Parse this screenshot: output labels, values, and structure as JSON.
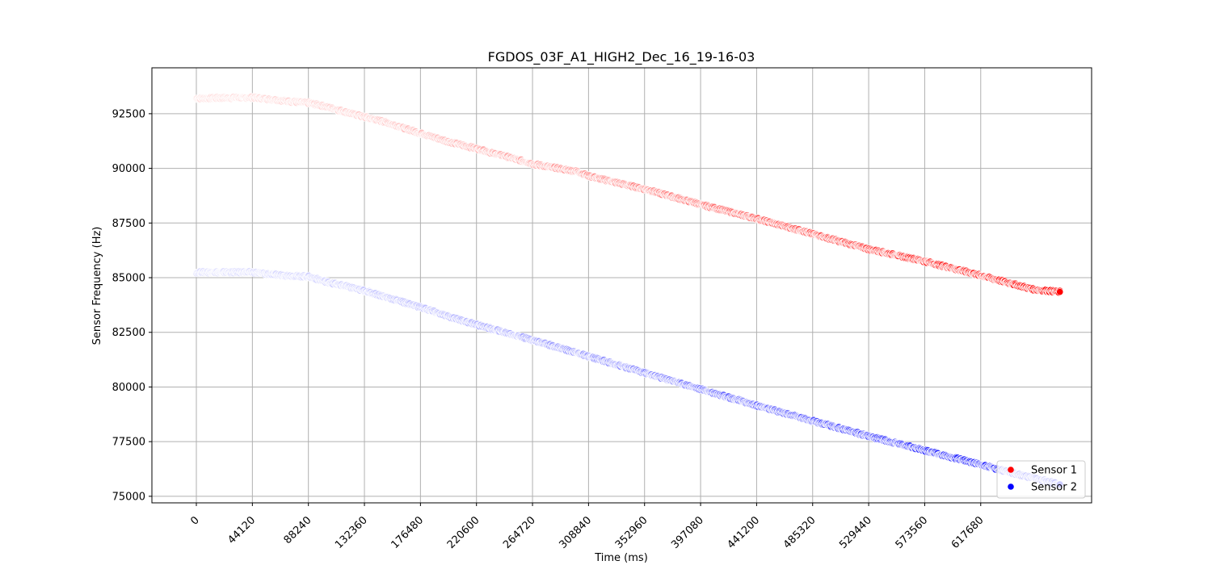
{
  "chart_data": {
    "type": "scatter",
    "title": "FGDOS_03F_A1_HIGH2_Dec_16_19-16-03",
    "xlabel": "Time (ms)",
    "ylabel": "Sensor Frequency (Hz)",
    "xlim": [
      -35000,
      705000
    ],
    "ylim": [
      74700,
      94600
    ],
    "xticks": [
      0,
      44120,
      88240,
      132360,
      176480,
      220600,
      264720,
      308840,
      352960,
      397080,
      441200,
      485320,
      529440,
      573560,
      617680
    ],
    "xtick_labels": [
      "0",
      "44120",
      "88240",
      "132360",
      "176480",
      "220600",
      "264720",
      "308840",
      "352960",
      "397080",
      "441200",
      "485320",
      "529440",
      "573560",
      "617680"
    ],
    "yticks": [
      75000,
      77500,
      80000,
      82500,
      85000,
      87500,
      90000,
      92500
    ],
    "ytick_labels": [
      "75000",
      "77500",
      "80000",
      "82500",
      "85000",
      "87500",
      "90000",
      "92500"
    ],
    "grid": true,
    "legend_position": "lower-right",
    "series": [
      {
        "name": "Sensor 1",
        "color": "#ff0000",
        "x": [
          0,
          20000,
          44120,
          60000,
          75000,
          88240,
          100000,
          132360,
          150000,
          176480,
          200000,
          220600,
          250000,
          264720,
          300000,
          308840,
          352960,
          397080,
          441200,
          485320,
          529440,
          573560,
          617680,
          660000,
          680000
        ],
        "y": [
          93200,
          93220,
          93240,
          93150,
          93050,
          93000,
          92850,
          92350,
          92100,
          91600,
          91200,
          90900,
          90450,
          90200,
          89850,
          89650,
          89050,
          88350,
          87700,
          87000,
          86300,
          85750,
          85100,
          84450,
          84350
        ]
      },
      {
        "name": "Sensor 2",
        "color": "#0000ff",
        "x": [
          0,
          20000,
          44120,
          60000,
          75000,
          88240,
          100000,
          132360,
          150000,
          176480,
          200000,
          220600,
          264720,
          308840,
          352960,
          397080,
          441200,
          485320,
          529440,
          573560,
          617680,
          650000,
          680000
        ],
        "y": [
          85250,
          85250,
          85250,
          85150,
          85080,
          85050,
          84850,
          84400,
          84100,
          83650,
          83200,
          82850,
          82150,
          81400,
          80650,
          79900,
          79150,
          78450,
          77750,
          77100,
          76450,
          75950,
          75550
        ]
      }
    ]
  }
}
